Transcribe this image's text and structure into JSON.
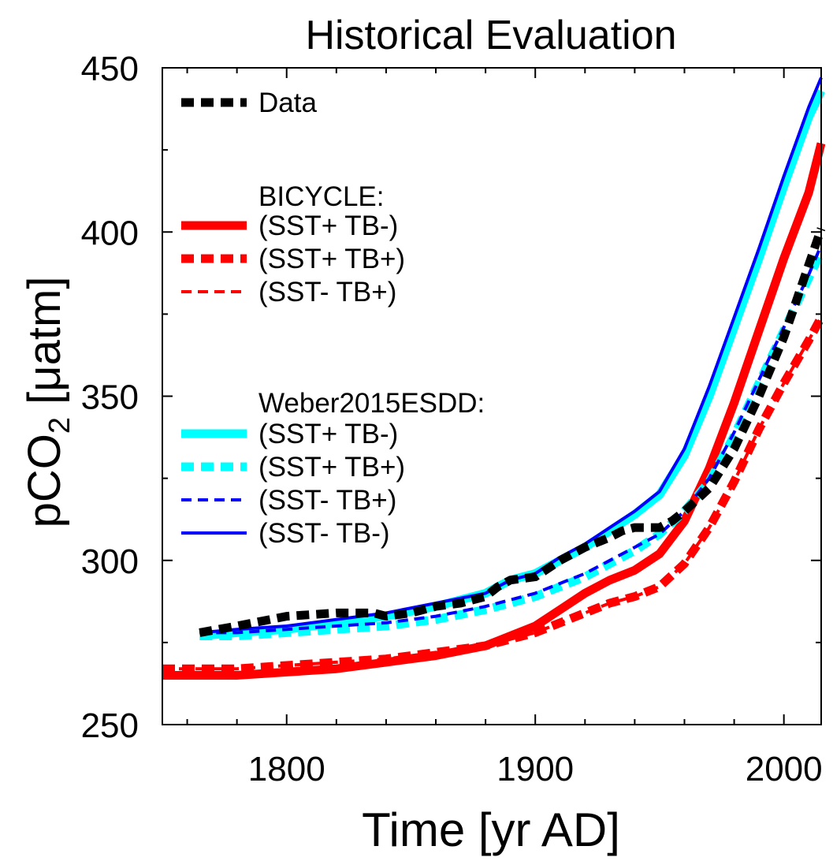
{
  "chart_data": {
    "type": "line",
    "title": "Historical Evaluation",
    "xlabel": "Time [yr AD]",
    "ylabel": {
      "prefix": "pCO",
      "subscript": "2",
      "suffix": " [μatm]"
    },
    "xlim": [
      1750,
      2015
    ],
    "ylim": [
      250,
      450
    ],
    "x_ticks": [
      1800,
      1900,
      2000
    ],
    "y_ticks": [
      250,
      300,
      350,
      400,
      450
    ],
    "legend": {
      "placement": "top-left",
      "group_headers": [
        "BICYCLE:",
        "Weber2015ESDD:"
      ]
    },
    "series": [
      {
        "name": "Data",
        "color": "#000000",
        "style": "dashed-thick",
        "x": [
          1765,
          1780,
          1800,
          1820,
          1835,
          1840,
          1850,
          1860,
          1870,
          1880,
          1885,
          1890,
          1900,
          1910,
          1920,
          1930,
          1935,
          1940,
          1950,
          1955,
          1960,
          1970,
          1980,
          1990,
          2000,
          2010,
          2015
        ],
        "y": [
          278,
          280,
          283,
          284,
          284,
          283,
          284,
          286,
          287,
          289,
          292,
          294,
          295,
          300,
          304,
          307,
          309,
          310,
          310,
          312,
          315,
          322,
          334,
          350,
          368,
          390,
          401
        ]
      },
      {
        "name": "(SST+ TB-)",
        "group": "BICYCLE:",
        "color": "#ff0000",
        "style": "solid-thick",
        "x": [
          1750,
          1780,
          1800,
          1820,
          1840,
          1860,
          1880,
          1890,
          1900,
          1910,
          1920,
          1930,
          1940,
          1950,
          1960,
          1970,
          1980,
          1990,
          2000,
          2010,
          2015
        ],
        "y": [
          265,
          265,
          266,
          267,
          269,
          271,
          274,
          277,
          280,
          285,
          290,
          294,
          297,
          302,
          312,
          328,
          348,
          370,
          392,
          412,
          427
        ]
      },
      {
        "name": "(SST+ TB+)",
        "group": "BICYCLE:",
        "color": "#ff0000",
        "style": "dashed-thick",
        "x": [
          1750,
          1780,
          1800,
          1820,
          1840,
          1860,
          1880,
          1900,
          1910,
          1920,
          1930,
          1940,
          1950,
          1960,
          1970,
          1980,
          1990,
          2000,
          2010,
          2015
        ],
        "y": [
          267,
          267,
          268,
          269,
          270,
          272,
          274,
          278,
          281,
          284,
          287,
          289,
          292,
          299,
          310,
          324,
          340,
          354,
          367,
          374
        ]
      },
      {
        "name": "(SST- TB+)",
        "group": "BICYCLE:",
        "color": "#ff0000",
        "style": "dashed-thin",
        "x": [
          1750,
          1780,
          1800,
          1820,
          1840,
          1860,
          1880,
          1900,
          1910,
          1920,
          1930,
          1940,
          1950,
          1960,
          1970,
          1980,
          1990,
          2000,
          2010,
          2015
        ],
        "y": [
          267,
          267,
          268,
          269,
          270,
          272,
          274,
          278,
          281,
          284,
          287,
          289,
          292,
          299,
          310,
          324,
          340,
          354,
          367,
          374
        ]
      },
      {
        "name": "(SST+ TB-)",
        "group": "Weber2015ESDD:",
        "color": "#00ffff",
        "style": "solid-thick",
        "x": [
          1765,
          1780,
          1800,
          1820,
          1840,
          1860,
          1880,
          1890,
          1900,
          1910,
          1920,
          1930,
          1940,
          1950,
          1960,
          1970,
          1980,
          1990,
          2000,
          2010,
          2015
        ],
        "y": [
          277,
          278,
          279,
          281,
          283,
          286,
          290,
          294,
          296,
          300,
          304,
          309,
          314,
          320,
          332,
          350,
          371,
          392,
          414,
          435,
          443
        ]
      },
      {
        "name": "(SST+ TB+)",
        "group": "Weber2015ESDD:",
        "color": "#00ffff",
        "style": "dashed-thick",
        "x": [
          1765,
          1780,
          1800,
          1820,
          1840,
          1860,
          1880,
          1900,
          1920,
          1930,
          1940,
          1950,
          1960,
          1970,
          1980,
          1990,
          2000,
          2010,
          2015
        ],
        "y": [
          277,
          277,
          278,
          279,
          280,
          282,
          285,
          289,
          295,
          299,
          303,
          308,
          315,
          324,
          338,
          354,
          370,
          386,
          394
        ]
      },
      {
        "name": "(SST- TB+)",
        "group": "Weber2015ESDD:",
        "color": "#0000ff",
        "style": "dashed-thin",
        "x": [
          1765,
          1780,
          1800,
          1820,
          1840,
          1860,
          1880,
          1900,
          1920,
          1930,
          1940,
          1950,
          1960,
          1970,
          1980,
          1990,
          2000,
          2010,
          2015
        ],
        "y": [
          278,
          278,
          279,
          280,
          281,
          283,
          286,
          290,
          296,
          300,
          304,
          308,
          315,
          325,
          339,
          355,
          371,
          387,
          396
        ]
      },
      {
        "name": "(SST- TB-)",
        "group": "Weber2015ESDD:",
        "color": "#0000ff",
        "style": "solid-thin",
        "x": [
          1765,
          1780,
          1800,
          1820,
          1840,
          1860,
          1880,
          1890,
          1900,
          1910,
          1920,
          1930,
          1940,
          1950,
          1960,
          1970,
          1980,
          1990,
          2000,
          2010,
          2015
        ],
        "y": [
          278,
          279,
          280,
          282,
          284,
          287,
          290,
          294,
          296,
          301,
          305,
          310,
          315,
          321,
          334,
          353,
          374,
          395,
          417,
          438,
          447
        ]
      }
    ]
  }
}
